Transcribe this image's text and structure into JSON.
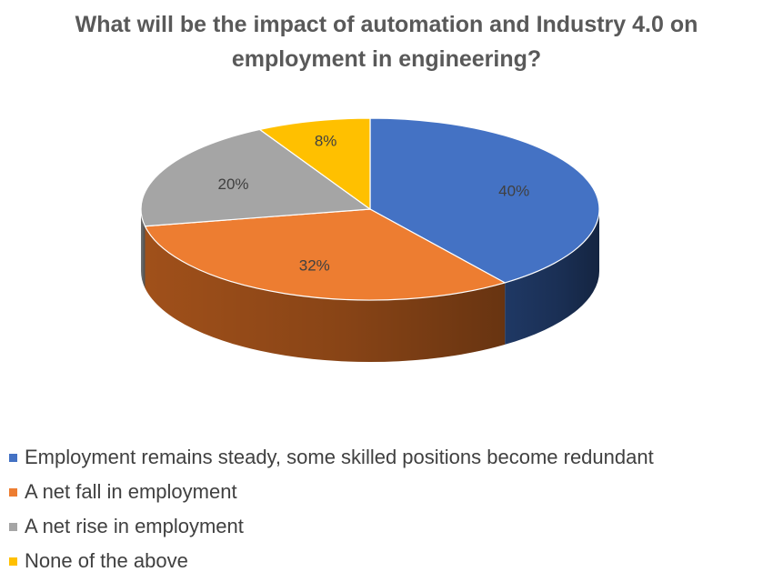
{
  "chart_data": {
    "type": "pie",
    "title_lines": [
      "What will be the impact of automation and Industry 4.0 on",
      "employment in engineering?"
    ],
    "slices": [
      {
        "name": "Employment remains steady, some skilled positions become redundant",
        "value": 40,
        "label": "40%",
        "color": "#4472C4",
        "side_color": "#1F3864"
      },
      {
        "name": "A net fall in employment",
        "value": 32,
        "label": "32%",
        "color": "#ED7D31",
        "side_color": "#A0501A"
      },
      {
        "name": "A net rise in employment",
        "value": 20,
        "label": "20%",
        "color": "#A5A5A5",
        "side_color": "#707070"
      },
      {
        "name": "None of the above",
        "value": 8,
        "label": "8%",
        "color": "#FFC000",
        "side_color": "#B38600"
      }
    ],
    "legend_position": "bottom-left"
  }
}
